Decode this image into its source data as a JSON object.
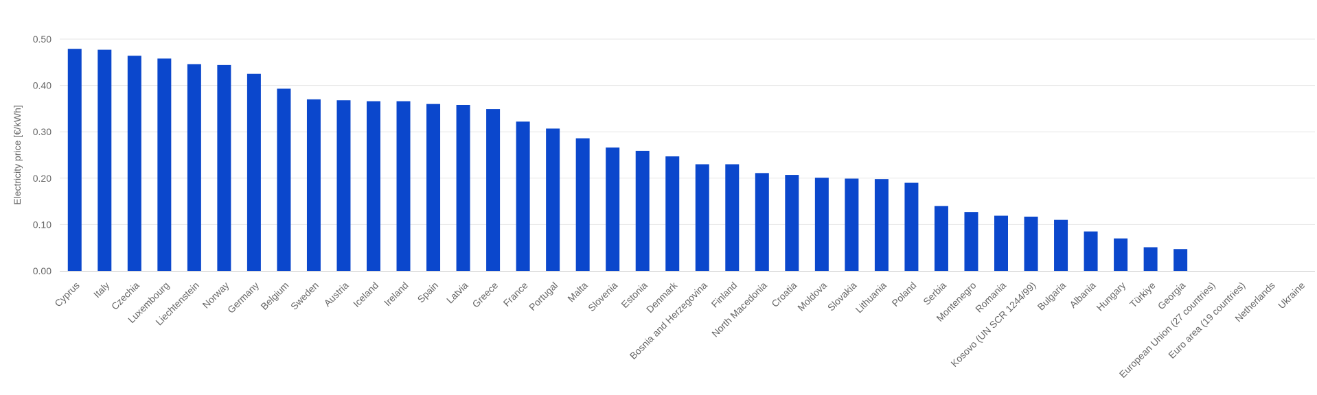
{
  "chart_data": {
    "type": "bar",
    "title": "",
    "xlabel": "",
    "ylabel": "Electricity price [€/kWh]",
    "ylim": [
      0,
      0.5
    ],
    "yticks": [
      "0.00",
      "0.10",
      "0.20",
      "0.30",
      "0.40",
      "0.50"
    ],
    "ytick_values": [
      0,
      0.1,
      0.2,
      0.3,
      0.4,
      0.5
    ],
    "grid": true,
    "legend": "none",
    "bar_color": "#0b47cc",
    "grid_color": "#e6e6e6",
    "axis_color": "#cccccc",
    "text_color": "#666666",
    "categories": [
      "Cyprus",
      "Italy",
      "Czechia",
      "Luxembourg",
      "Liechtenstein",
      "Norway",
      "Germany",
      "Belgium",
      "Sweden",
      "Austria",
      "Iceland",
      "Ireland",
      "Spain",
      "Latvia",
      "Greece",
      "France",
      "Portugal",
      "Malta",
      "Slovenia",
      "Estonia",
      "Denmark",
      "Bosnia and Herzegovina",
      "Finland",
      "North Macedonia",
      "Croatia",
      "Moldova",
      "Slovakia",
      "Lithuania",
      "Poland",
      "Serbia",
      "Montenegro",
      "Romania",
      "Kosovo (UN SCR 1244/99)",
      "Bulgaria",
      "Albania",
      "Hungary",
      "Türkiye",
      "Georgia",
      "European Union (27 countries)",
      "Euro area (19 countries)",
      "Netherlands",
      "Ukraine"
    ],
    "values": [
      0.479,
      0.477,
      0.464,
      0.458,
      0.446,
      0.444,
      0.425,
      0.393,
      0.37,
      0.368,
      0.366,
      0.366,
      0.36,
      0.358,
      0.349,
      0.322,
      0.307,
      0.286,
      0.266,
      0.259,
      0.247,
      0.23,
      0.23,
      0.211,
      0.207,
      0.201,
      0.199,
      0.198,
      0.19,
      0.14,
      0.127,
      0.119,
      0.117,
      0.11,
      0.085,
      0.07,
      0.051,
      0.047,
      null,
      null,
      null,
      null
    ]
  }
}
